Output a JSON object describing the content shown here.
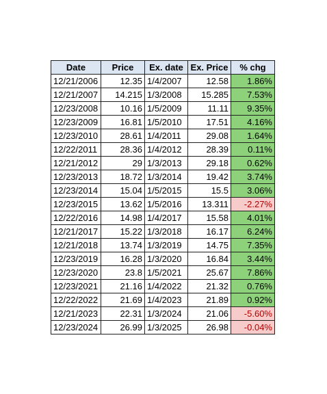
{
  "table": {
    "headers": [
      "Date",
      "Price",
      "Ex. date",
      "Ex. Price",
      "% chg"
    ],
    "rows": [
      {
        "date": "12/21/2006",
        "price": "12.35",
        "ex_date": "1/4/2007",
        "ex_price": "12.58",
        "pct_chg": "1.86%",
        "sign": "pos"
      },
      {
        "date": "12/21/2007",
        "price": "14.215",
        "ex_date": "1/3/2008",
        "ex_price": "15.285",
        "pct_chg": "7.53%",
        "sign": "pos"
      },
      {
        "date": "12/23/2008",
        "price": "10.16",
        "ex_date": "1/5/2009",
        "ex_price": "11.11",
        "pct_chg": "9.35%",
        "sign": "pos"
      },
      {
        "date": "12/23/2009",
        "price": "16.81",
        "ex_date": "1/5/2010",
        "ex_price": "17.51",
        "pct_chg": "4.16%",
        "sign": "pos"
      },
      {
        "date": "12/23/2010",
        "price": "28.61",
        "ex_date": "1/4/2011",
        "ex_price": "29.08",
        "pct_chg": "1.64%",
        "sign": "pos"
      },
      {
        "date": "12/22/2011",
        "price": "28.36",
        "ex_date": "1/4/2012",
        "ex_price": "28.39",
        "pct_chg": "0.11%",
        "sign": "pos"
      },
      {
        "date": "12/21/2012",
        "price": "29",
        "ex_date": "1/3/2013",
        "ex_price": "29.18",
        "pct_chg": "0.62%",
        "sign": "pos"
      },
      {
        "date": "12/23/2013",
        "price": "18.72",
        "ex_date": "1/3/2014",
        "ex_price": "19.42",
        "pct_chg": "3.74%",
        "sign": "pos"
      },
      {
        "date": "12/23/2014",
        "price": "15.04",
        "ex_date": "1/5/2015",
        "ex_price": "15.5",
        "pct_chg": "3.06%",
        "sign": "pos"
      },
      {
        "date": "12/23/2015",
        "price": "13.62",
        "ex_date": "1/5/2016",
        "ex_price": "13.311",
        "pct_chg": "-2.27%",
        "sign": "neg"
      },
      {
        "date": "12/22/2016",
        "price": "14.98",
        "ex_date": "1/4/2017",
        "ex_price": "15.58",
        "pct_chg": "4.01%",
        "sign": "pos"
      },
      {
        "date": "12/21/2017",
        "price": "15.22",
        "ex_date": "1/3/2018",
        "ex_price": "16.17",
        "pct_chg": "6.24%",
        "sign": "pos"
      },
      {
        "date": "12/21/2018",
        "price": "13.74",
        "ex_date": "1/3/2019",
        "ex_price": "14.75",
        "pct_chg": "7.35%",
        "sign": "pos"
      },
      {
        "date": "12/23/2019",
        "price": "16.28",
        "ex_date": "1/3/2020",
        "ex_price": "16.84",
        "pct_chg": "3.44%",
        "sign": "pos"
      },
      {
        "date": "12/23/2020",
        "price": "23.8",
        "ex_date": "1/5/2021",
        "ex_price": "25.67",
        "pct_chg": "7.86%",
        "sign": "pos"
      },
      {
        "date": "12/23/2021",
        "price": "21.16",
        "ex_date": "1/4/2022",
        "ex_price": "21.32",
        "pct_chg": "0.76%",
        "sign": "pos"
      },
      {
        "date": "12/22/2022",
        "price": "21.69",
        "ex_date": "1/4/2023",
        "ex_price": "21.89",
        "pct_chg": "0.92%",
        "sign": "pos"
      },
      {
        "date": "12/21/2023",
        "price": "22.31",
        "ex_date": "1/3/2024",
        "ex_price": "21.06",
        "pct_chg": "-5.60%",
        "sign": "neg"
      },
      {
        "date": "12/23/2024",
        "price": "26.99",
        "ex_date": "1/3/2025",
        "ex_price": "26.98",
        "pct_chg": "-0.04%",
        "sign": "neg"
      }
    ]
  },
  "colors": {
    "header_bg": "#dce6f2",
    "positive_bg": "#8dd17a",
    "negative_bg": "#f8cbcb",
    "negative_text": "#b00000",
    "border": "#1f1f1f"
  }
}
